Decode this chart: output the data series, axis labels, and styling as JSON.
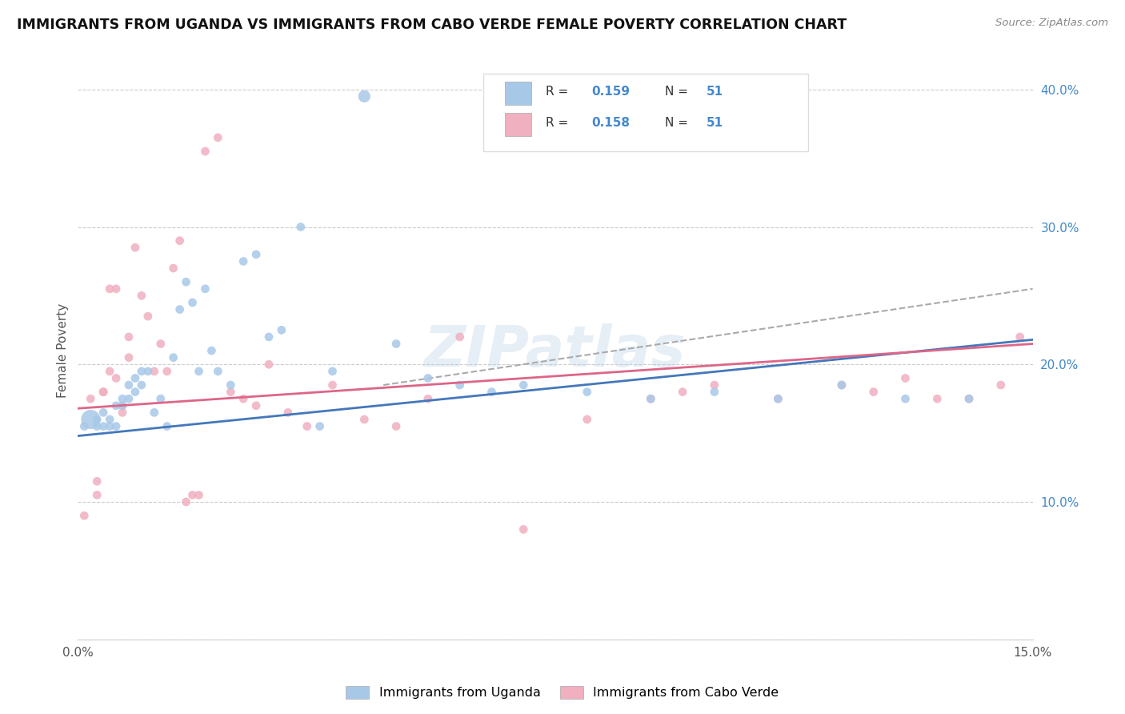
{
  "title": "IMMIGRANTS FROM UGANDA VS IMMIGRANTS FROM CABO VERDE FEMALE POVERTY CORRELATION CHART",
  "source": "Source: ZipAtlas.com",
  "ylabel": "Female Poverty",
  "xlim": [
    0,
    0.15
  ],
  "ylim": [
    0,
    0.42
  ],
  "color_uganda": "#a8c8e8",
  "color_cabo": "#f0b0c0",
  "color_uganda_line": "#4477bb",
  "color_cabo_line": "#dd6688",
  "color_dashed_line": "#aaaaaa",
  "uganda_x": [
    0.001,
    0.002,
    0.003,
    0.003,
    0.004,
    0.004,
    0.005,
    0.005,
    0.006,
    0.006,
    0.007,
    0.007,
    0.008,
    0.008,
    0.009,
    0.009,
    0.01,
    0.01,
    0.011,
    0.012,
    0.013,
    0.014,
    0.015,
    0.016,
    0.017,
    0.018,
    0.019,
    0.02,
    0.021,
    0.022,
    0.024,
    0.026,
    0.028,
    0.03,
    0.032,
    0.035,
    0.038,
    0.04,
    0.045,
    0.05,
    0.055,
    0.06,
    0.065,
    0.07,
    0.08,
    0.09,
    0.1,
    0.11,
    0.12,
    0.13,
    0.14
  ],
  "uganda_y": [
    0.155,
    0.16,
    0.16,
    0.155,
    0.155,
    0.165,
    0.155,
    0.16,
    0.155,
    0.17,
    0.17,
    0.175,
    0.175,
    0.185,
    0.18,
    0.19,
    0.185,
    0.195,
    0.195,
    0.165,
    0.175,
    0.155,
    0.205,
    0.24,
    0.26,
    0.245,
    0.195,
    0.255,
    0.21,
    0.195,
    0.185,
    0.275,
    0.28,
    0.22,
    0.225,
    0.3,
    0.155,
    0.195,
    0.395,
    0.215,
    0.19,
    0.185,
    0.18,
    0.185,
    0.18,
    0.175,
    0.18,
    0.175,
    0.185,
    0.175,
    0.175
  ],
  "cabo_x": [
    0.001,
    0.002,
    0.003,
    0.003,
    0.004,
    0.004,
    0.005,
    0.005,
    0.006,
    0.006,
    0.007,
    0.007,
    0.008,
    0.008,
    0.009,
    0.01,
    0.011,
    0.012,
    0.013,
    0.014,
    0.015,
    0.016,
    0.017,
    0.018,
    0.019,
    0.02,
    0.022,
    0.024,
    0.026,
    0.028,
    0.03,
    0.033,
    0.036,
    0.04,
    0.045,
    0.05,
    0.055,
    0.06,
    0.07,
    0.08,
    0.09,
    0.095,
    0.1,
    0.11,
    0.12,
    0.125,
    0.13,
    0.135,
    0.14,
    0.145,
    0.148
  ],
  "cabo_y": [
    0.09,
    0.175,
    0.105,
    0.115,
    0.18,
    0.18,
    0.195,
    0.255,
    0.255,
    0.19,
    0.165,
    0.17,
    0.22,
    0.205,
    0.285,
    0.25,
    0.235,
    0.195,
    0.215,
    0.195,
    0.27,
    0.29,
    0.1,
    0.105,
    0.105,
    0.355,
    0.365,
    0.18,
    0.175,
    0.17,
    0.2,
    0.165,
    0.155,
    0.185,
    0.16,
    0.155,
    0.175,
    0.22,
    0.08,
    0.16,
    0.175,
    0.18,
    0.185,
    0.175,
    0.185,
    0.18,
    0.19,
    0.175,
    0.175,
    0.185,
    0.22
  ],
  "uganda_sizes": [
    60,
    300,
    60,
    60,
    60,
    60,
    60,
    60,
    60,
    60,
    60,
    60,
    60,
    60,
    60,
    60,
    60,
    60,
    60,
    60,
    60,
    60,
    60,
    60,
    60,
    60,
    60,
    60,
    60,
    60,
    60,
    60,
    60,
    60,
    60,
    60,
    60,
    60,
    120,
    60,
    60,
    60,
    60,
    60,
    60,
    60,
    60,
    60,
    60,
    60,
    60
  ],
  "cabo_sizes": [
    60,
    60,
    60,
    60,
    60,
    60,
    60,
    60,
    60,
    60,
    60,
    60,
    60,
    60,
    60,
    60,
    60,
    60,
    60,
    60,
    60,
    60,
    60,
    60,
    60,
    60,
    60,
    60,
    60,
    60,
    60,
    60,
    60,
    60,
    60,
    60,
    60,
    60,
    60,
    60,
    60,
    60,
    60,
    60,
    60,
    60,
    60,
    60,
    60,
    60,
    60
  ],
  "uganda_line_x": [
    0.0,
    0.15
  ],
  "uganda_line_y": [
    0.148,
    0.218
  ],
  "cabo_line_x": [
    0.0,
    0.15
  ],
  "cabo_line_y": [
    0.168,
    0.215
  ],
  "dashed_line_x": [
    0.048,
    0.15
  ],
  "dashed_line_y": [
    0.185,
    0.255
  ]
}
